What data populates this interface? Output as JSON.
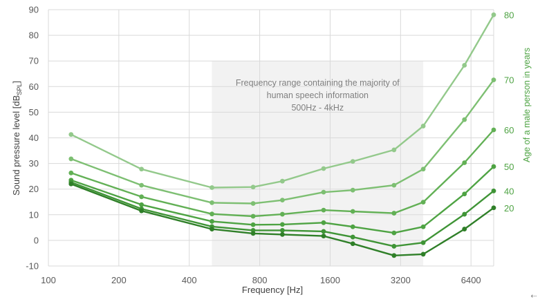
{
  "chart_data": {
    "type": "line",
    "xlabel": "Frequency [Hz]",
    "ylabel": "Sound pressure level [dB",
    "ylabel_sub": "SPL",
    "ylabel_end": "]",
    "x_scale": "log2",
    "xlim": [
      100,
      8000
    ],
    "ylim": [
      -10,
      90
    ],
    "x_ticks": [
      100,
      200,
      400,
      800,
      1600,
      3200,
      6400
    ],
    "x_tick_labels": [
      "100",
      "200",
      "400",
      "800",
      "1600",
      "3200",
      "6400"
    ],
    "y_ticks": [
      -10,
      0,
      10,
      20,
      30,
      40,
      50,
      60,
      70,
      80,
      90
    ],
    "y_tick_labels": [
      "-10",
      "0",
      "10",
      "20",
      "30",
      "40",
      "50",
      "60",
      "70",
      "80",
      "90"
    ],
    "grid": true,
    "x": [
      125,
      250,
      500,
      750,
      1000,
      1500,
      2000,
      3000,
      4000,
      6000,
      8000
    ],
    "series": [
      {
        "name": "80",
        "color": "#93c98b",
        "values": [
          41.3,
          27.8,
          20.6,
          20.8,
          23.1,
          28.0,
          30.8,
          35.3,
          44.6,
          68.3,
          88.0
        ]
      },
      {
        "name": "70",
        "color": "#7dbf72",
        "values": [
          31.8,
          21.5,
          14.7,
          14.4,
          15.7,
          18.8,
          19.6,
          21.5,
          27.8,
          47.1,
          62.6
        ]
      },
      {
        "name": "60",
        "color": "#62b055",
        "values": [
          26.3,
          17.0,
          10.3,
          9.4,
          10.2,
          11.8,
          11.3,
          10.6,
          14.9,
          30.3,
          43.1
        ]
      },
      {
        "name": "50",
        "color": "#4ea343",
        "values": [
          23.5,
          13.9,
          7.4,
          6.1,
          6.2,
          6.9,
          5.3,
          2.9,
          5.3,
          18.1,
          28.8
        ]
      },
      {
        "name": "40",
        "color": "#3f9436",
        "values": [
          22.7,
          12.3,
          5.4,
          3.9,
          3.9,
          3.5,
          1.3,
          -2.3,
          -0.9,
          10.2,
          19.3
        ]
      },
      {
        "name": "20",
        "color": "#2f7f28",
        "values": [
          22.0,
          11.5,
          4.4,
          2.7,
          2.3,
          1.7,
          -1.3,
          -5.9,
          -5.4,
          4.4,
          12.7
        ]
      }
    ],
    "shaded_band": {
      "x_from": 500,
      "x_to": 4000,
      "label_lines": [
        "Frequency range containing the majority of",
        "human speech information",
        "500Hz - 4kHz"
      ]
    },
    "right_axis_title": "Age of a male person in years",
    "right_label_color": "#4ea343"
  },
  "corner_glyph": "⇠"
}
